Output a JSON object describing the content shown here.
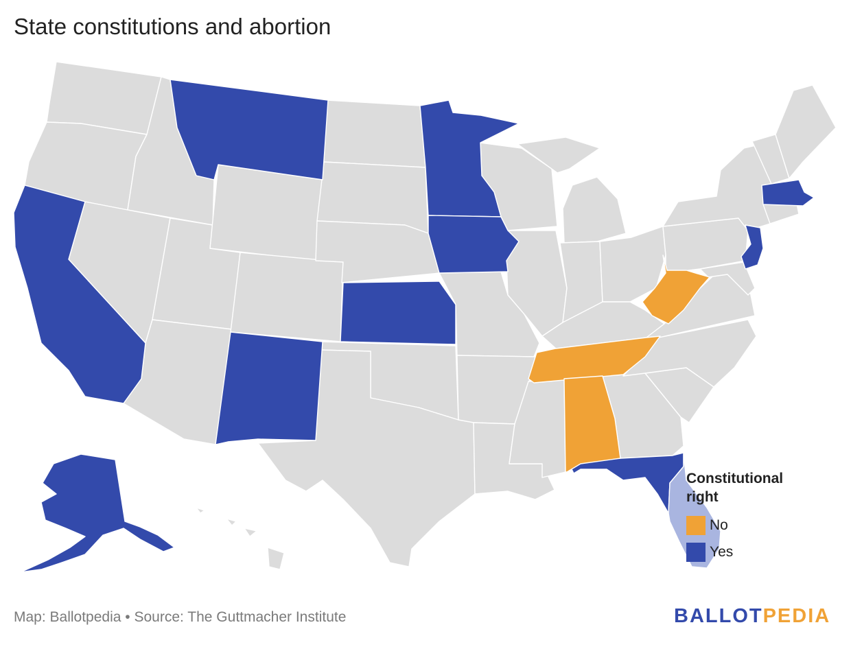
{
  "title": "State constitutions and abortion",
  "legend": {
    "title_line1": "Constitutional",
    "title_line2": "right",
    "items": [
      {
        "label": "No",
        "color": "#f0a236"
      },
      {
        "label": "Yes",
        "color": "#334aab"
      }
    ]
  },
  "colors": {
    "yes": "#334aab",
    "no": "#f0a236",
    "none": "#dcdcdc",
    "florida_peninsula": "#a9b5e0",
    "background": "#ffffff"
  },
  "states_yes": [
    "Montana",
    "California",
    "Minnesota",
    "Iowa",
    "Kansas",
    "New Mexico",
    "Alaska",
    "Florida",
    "New Jersey",
    "Massachusetts"
  ],
  "states_no": [
    "West Virginia",
    "Tennessee",
    "Alabama"
  ],
  "footer": {
    "source": "Map: Ballotpedia • Source: The Guttmacher Institute",
    "logo_part1": "BALLOT",
    "logo_part2": "PEDIA"
  }
}
